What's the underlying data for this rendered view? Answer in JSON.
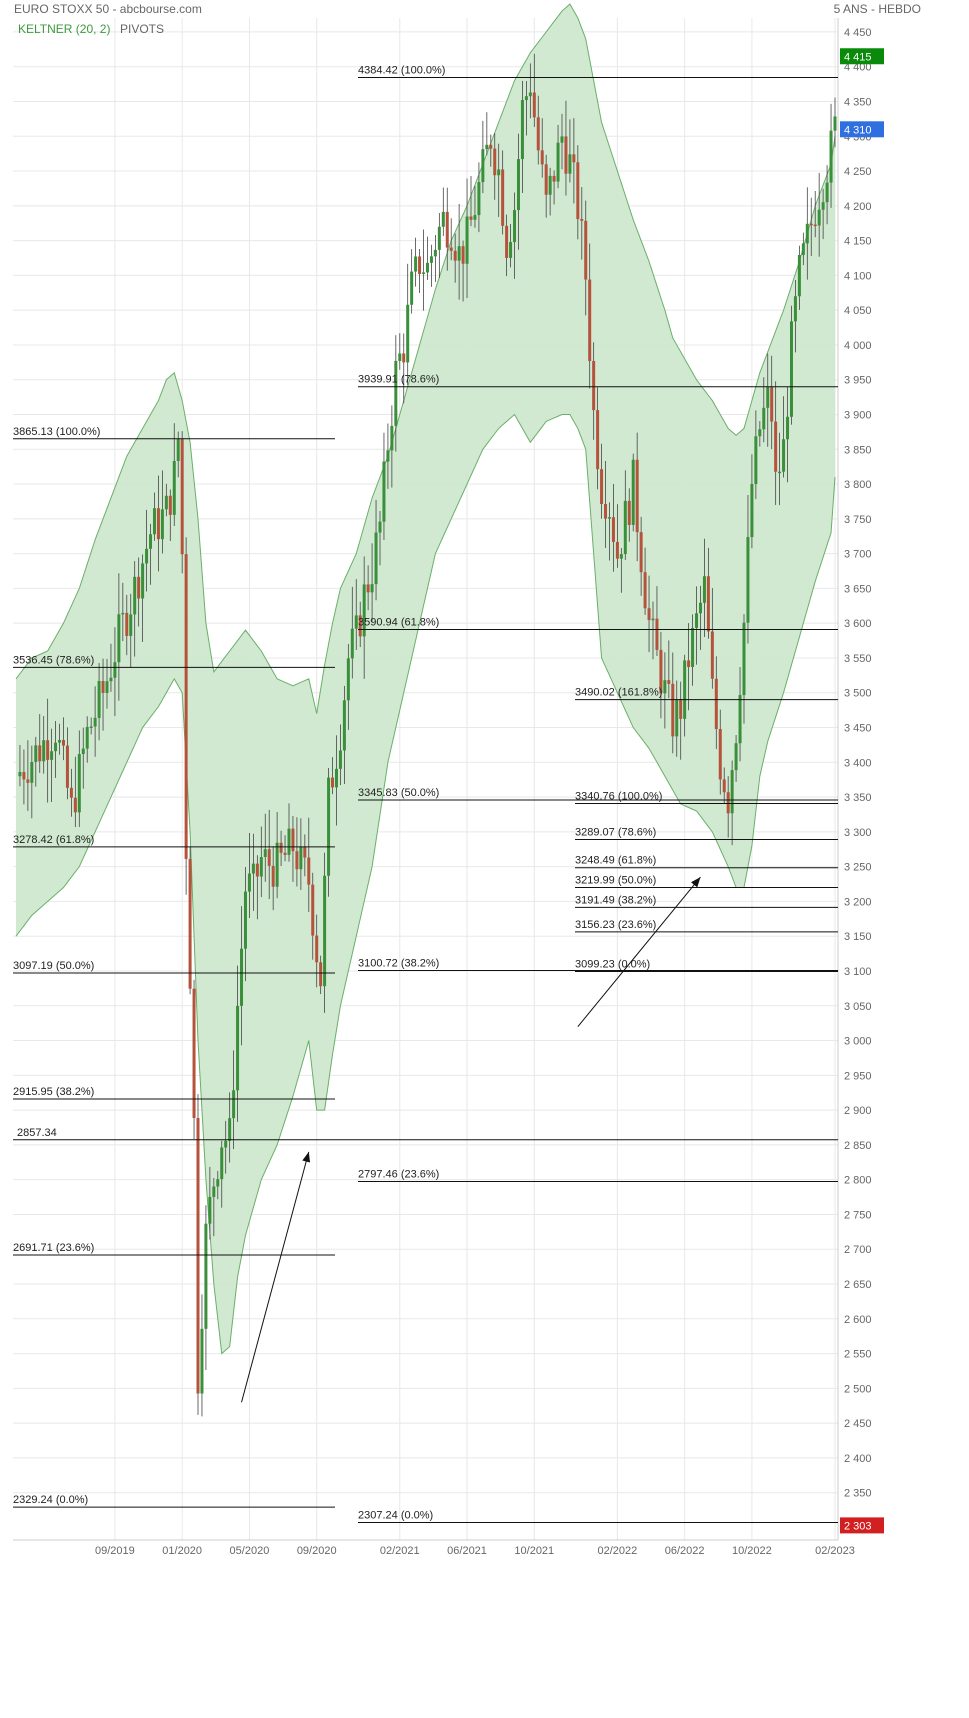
{
  "header": {
    "title": "EURO STOXX 50 - abcbourse.com",
    "period": "5 ANS - HEBDO",
    "indicator_keltner": "KELTNER (20, 2)",
    "indicator_pivots": "PIVOTS"
  },
  "colors": {
    "up": "#3a8f3a",
    "down": "#b5523b",
    "band_fill": "#cfe8cf",
    "band_line": "#6aaf6a",
    "grid": "#e8e8e8",
    "label_green": "#0a8a0a",
    "label_blue": "#2f6fe0",
    "label_red": "#d21f1f"
  },
  "chart_data": {
    "type": "candlestick",
    "title": "EURO STOXX 50 - abcbourse.com",
    "ylim": [
      2282,
      4470
    ],
    "y_ticks": [
      2350,
      2400,
      2450,
      2500,
      2550,
      2600,
      2650,
      2700,
      2750,
      2800,
      2850,
      2900,
      2950,
      3000,
      3050,
      3100,
      3150,
      3200,
      3250,
      3300,
      3350,
      3400,
      3450,
      3500,
      3550,
      3600,
      3650,
      3700,
      3750,
      3800,
      3850,
      3900,
      3950,
      4000,
      4050,
      4100,
      4150,
      4200,
      4250,
      4300,
      4350,
      4400,
      4450
    ],
    "y_tick_labels": [
      "2 350",
      "2 400",
      "2 450",
      "2 500",
      "2 550",
      "2 600",
      "2 650",
      "2 700",
      "2 750",
      "2 800",
      "2 850",
      "2 900",
      "2 950",
      "3 000",
      "3 050",
      "3 100",
      "3 150",
      "3 200",
      "3 250",
      "3 300",
      "3 350",
      "3 400",
      "3 450",
      "3 500",
      "3 550",
      "3 600",
      "3 650",
      "3 700",
      "3 750",
      "3 800",
      "3 850",
      "3 900",
      "3 950",
      "4 000",
      "4 050",
      "4 100",
      "4 150",
      "4 200",
      "4 250",
      "4 300",
      "4 350",
      "4 400",
      "4 450"
    ],
    "x_labels": [
      "09/2019",
      "01/2020",
      "05/2020",
      "09/2020",
      "02/2021",
      "06/2021",
      "10/2021",
      "02/2022",
      "06/2022",
      "10/2022",
      "02/2023"
    ],
    "x_label_weeks": [
      25,
      42,
      59,
      76,
      97,
      114,
      131,
      152,
      169,
      186,
      207
    ],
    "grid": true,
    "price_badges": [
      {
        "value": 4415,
        "label": "4 415",
        "color": "#0a8a0a"
      },
      {
        "value": 4310,
        "label": "4 310",
        "color": "#2f6fe0"
      },
      {
        "value": 2303,
        "label": "2 303",
        "color": "#d21f1f"
      }
    ],
    "fib_lines": [
      {
        "value": 3865.13,
        "label": "3865.13  (100.0%)",
        "group": 1
      },
      {
        "value": 3536.45,
        "label": "3536.45  (78.6%)",
        "group": 1
      },
      {
        "value": 3278.42,
        "label": "3278.42  (61.8%)",
        "group": 1
      },
      {
        "value": 3097.19,
        "label": "3097.19  (50.0%)",
        "group": 1
      },
      {
        "value": 2915.95,
        "label": "2915.95  (38.2%)",
        "group": 1
      },
      {
        "value": 2691.71,
        "label": "2691.71  (23.6%)",
        "group": 1
      },
      {
        "value": 2329.24,
        "label": "2329.24  (0.0%)",
        "group": 1
      },
      {
        "value": 2857.34,
        "label": "2857.34",
        "group": 0
      },
      {
        "value": 4384.42,
        "label": "4384.42  (100.0%)",
        "group": 2
      },
      {
        "value": 3939.91,
        "label": "3939.91  (78.6%)",
        "group": 2
      },
      {
        "value": 3590.94,
        "label": "3590.94  (61.8%)",
        "group": 2
      },
      {
        "value": 3345.83,
        "label": "3345.83  (50.0%)",
        "group": 2
      },
      {
        "value": 3100.72,
        "label": "3100.72  (38.2%)",
        "group": 2
      },
      {
        "value": 2797.46,
        "label": "2797.46  (23.6%)",
        "group": 2
      },
      {
        "value": 2307.24,
        "label": "2307.24  (0.0%)",
        "group": 2
      },
      {
        "value": 3490.02,
        "label": "3490.02  (161.8%)",
        "group": 3
      },
      {
        "value": 3340.76,
        "label": "3340.76  (100.0%)",
        "group": 3
      },
      {
        "value": 3289.07,
        "label": "3289.07  (78.6%)",
        "group": 3
      },
      {
        "value": 3248.49,
        "label": "3248.49  (61.8%)",
        "group": 3
      },
      {
        "value": 3219.99,
        "label": "3219.99  (50.0%)",
        "group": 3
      },
      {
        "value": 3191.49,
        "label": "3191.49  (38.2%)",
        "group": 3
      },
      {
        "value": 3156.23,
        "label": "3156.23  (23.6%)",
        "group": 3
      },
      {
        "value": 3099.23,
        "label": "3099.23  (0.0%)",
        "group": 3
      }
    ],
    "arrows": [
      {
        "from": [
          57,
          2480
        ],
        "to": [
          74,
          2840
        ]
      },
      {
        "from": [
          142,
          3020
        ],
        "to": [
          173,
          3235
        ]
      }
    ],
    "close_path": [
      [
        0,
        3380
      ],
      [
        6,
        3420
      ],
      [
        10,
        3450
      ],
      [
        14,
        3330
      ],
      [
        18,
        3440
      ],
      [
        22,
        3500
      ],
      [
        26,
        3580
      ],
      [
        30,
        3650
      ],
      [
        34,
        3730
      ],
      [
        38,
        3760
      ],
      [
        40,
        3810
      ],
      [
        41,
        3865
      ],
      [
        42,
        3700
      ],
      [
        43,
        3280
      ],
      [
        44,
        3100
      ],
      [
        45,
        2880
      ],
      [
        46,
        2520
      ],
      [
        47,
        2620
      ],
      [
        48,
        2720
      ],
      [
        50,
        2800
      ],
      [
        52,
        2860
      ],
      [
        54,
        2860
      ],
      [
        56,
        3050
      ],
      [
        58,
        3220
      ],
      [
        60,
        3220
      ],
      [
        62,
        3260
      ],
      [
        66,
        3250
      ],
      [
        70,
        3280
      ],
      [
        72,
        3250
      ],
      [
        74,
        3230
      ],
      [
        76,
        3130
      ],
      [
        77,
        3090
      ],
      [
        79,
        3350
      ],
      [
        82,
        3450
      ],
      [
        84,
        3550
      ],
      [
        86,
        3580
      ],
      [
        88,
        3640
      ],
      [
        90,
        3680
      ],
      [
        92,
        3740
      ],
      [
        94,
        3860
      ],
      [
        96,
        3960
      ],
      [
        98,
        4000
      ],
      [
        100,
        4080
      ],
      [
        102,
        4120
      ],
      [
        104,
        4110
      ],
      [
        106,
        4150
      ],
      [
        108,
        4180
      ],
      [
        110,
        4170
      ],
      [
        112,
        4130
      ],
      [
        114,
        4150
      ],
      [
        116,
        4200
      ],
      [
        118,
        4250
      ],
      [
        120,
        4300
      ],
      [
        122,
        4250
      ],
      [
        124,
        4150
      ],
      [
        126,
        4200
      ],
      [
        128,
        4340
      ],
      [
        130,
        4380
      ],
      [
        132,
        4280
      ],
      [
        134,
        4200
      ],
      [
        136,
        4250
      ],
      [
        138,
        4300
      ],
      [
        140,
        4260
      ],
      [
        142,
        4200
      ],
      [
        144,
        4100
      ],
      [
        146,
        3900
      ],
      [
        148,
        3800
      ],
      [
        150,
        3770
      ],
      [
        152,
        3700
      ],
      [
        154,
        3750
      ],
      [
        156,
        3800
      ],
      [
        158,
        3700
      ],
      [
        160,
        3600
      ],
      [
        162,
        3550
      ],
      [
        164,
        3500
      ],
      [
        166,
        3460
      ],
      [
        168,
        3480
      ],
      [
        170,
        3550
      ],
      [
        172,
        3600
      ],
      [
        174,
        3650
      ],
      [
        176,
        3500
      ],
      [
        178,
        3400
      ],
      [
        180,
        3350
      ],
      [
        182,
        3450
      ],
      [
        184,
        3600
      ],
      [
        186,
        3800
      ],
      [
        188,
        3880
      ],
      [
        190,
        3920
      ],
      [
        191,
        3900
      ],
      [
        192,
        3800
      ],
      [
        194,
        3850
      ],
      [
        196,
        4000
      ],
      [
        198,
        4100
      ],
      [
        200,
        4150
      ],
      [
        202,
        4200
      ],
      [
        204,
        4240
      ],
      [
        206,
        4280
      ],
      [
        207,
        4310
      ]
    ],
    "band_upper": [
      [
        0,
        3520
      ],
      [
        4,
        3550
      ],
      [
        8,
        3560
      ],
      [
        12,
        3600
      ],
      [
        16,
        3650
      ],
      [
        20,
        3720
      ],
      [
        24,
        3780
      ],
      [
        28,
        3840
      ],
      [
        32,
        3880
      ],
      [
        36,
        3920
      ],
      [
        38,
        3950
      ],
      [
        40,
        3960
      ],
      [
        42,
        3920
      ],
      [
        44,
        3860
      ],
      [
        46,
        3750
      ],
      [
        48,
        3600
      ],
      [
        50,
        3530
      ],
      [
        54,
        3560
      ],
      [
        58,
        3590
      ],
      [
        62,
        3560
      ],
      [
        66,
        3520
      ],
      [
        70,
        3510
      ],
      [
        74,
        3520
      ],
      [
        76,
        3470
      ],
      [
        78,
        3540
      ],
      [
        80,
        3600
      ],
      [
        82,
        3650
      ],
      [
        86,
        3700
      ],
      [
        90,
        3780
      ],
      [
        94,
        3840
      ],
      [
        98,
        3920
      ],
      [
        102,
        4000
      ],
      [
        106,
        4080
      ],
      [
        110,
        4150
      ],
      [
        114,
        4200
      ],
      [
        118,
        4260
      ],
      [
        122,
        4320
      ],
      [
        126,
        4380
      ],
      [
        130,
        4420
      ],
      [
        134,
        4450
      ],
      [
        138,
        4480
      ],
      [
        140,
        4490
      ],
      [
        142,
        4470
      ],
      [
        144,
        4440
      ],
      [
        146,
        4380
      ],
      [
        148,
        4320
      ],
      [
        152,
        4250
      ],
      [
        156,
        4180
      ],
      [
        160,
        4120
      ],
      [
        164,
        4050
      ],
      [
        166,
        4010
      ],
      [
        168,
        3990
      ],
      [
        172,
        3950
      ],
      [
        176,
        3920
      ],
      [
        180,
        3880
      ],
      [
        182,
        3870
      ],
      [
        184,
        3880
      ],
      [
        186,
        3920
      ],
      [
        188,
        3960
      ],
      [
        190,
        3990
      ],
      [
        194,
        4050
      ],
      [
        198,
        4120
      ],
      [
        202,
        4200
      ],
      [
        206,
        4260
      ],
      [
        207,
        4300
      ]
    ],
    "band_lower": [
      [
        0,
        3150
      ],
      [
        4,
        3180
      ],
      [
        8,
        3200
      ],
      [
        12,
        3220
      ],
      [
        16,
        3250
      ],
      [
        20,
        3300
      ],
      [
        24,
        3350
      ],
      [
        28,
        3400
      ],
      [
        32,
        3450
      ],
      [
        36,
        3480
      ],
      [
        38,
        3500
      ],
      [
        40,
        3520
      ],
      [
        42,
        3500
      ],
      [
        44,
        3300
      ],
      [
        46,
        3000
      ],
      [
        48,
        2800
      ],
      [
        50,
        2650
      ],
      [
        52,
        2550
      ],
      [
        54,
        2560
      ],
      [
        56,
        2660
      ],
      [
        58,
        2720
      ],
      [
        62,
        2800
      ],
      [
        66,
        2850
      ],
      [
        70,
        2920
      ],
      [
        74,
        3000
      ],
      [
        76,
        2900
      ],
      [
        78,
        2900
      ],
      [
        80,
        2980
      ],
      [
        82,
        3050
      ],
      [
        86,
        3150
      ],
      [
        90,
        3250
      ],
      [
        94,
        3400
      ],
      [
        98,
        3500
      ],
      [
        102,
        3600
      ],
      [
        106,
        3700
      ],
      [
        110,
        3750
      ],
      [
        114,
        3800
      ],
      [
        118,
        3850
      ],
      [
        122,
        3880
      ],
      [
        126,
        3900
      ],
      [
        130,
        3860
      ],
      [
        134,
        3890
      ],
      [
        138,
        3900
      ],
      [
        140,
        3900
      ],
      [
        142,
        3880
      ],
      [
        144,
        3850
      ],
      [
        146,
        3700
      ],
      [
        148,
        3550
      ],
      [
        152,
        3500
      ],
      [
        156,
        3450
      ],
      [
        160,
        3420
      ],
      [
        164,
        3380
      ],
      [
        168,
        3340
      ],
      [
        172,
        3330
      ],
      [
        176,
        3300
      ],
      [
        180,
        3250
      ],
      [
        182,
        3220
      ],
      [
        184,
        3220
      ],
      [
        186,
        3280
      ],
      [
        188,
        3380
      ],
      [
        190,
        3430
      ],
      [
        194,
        3500
      ],
      [
        198,
        3580
      ],
      [
        202,
        3660
      ],
      [
        206,
        3730
      ],
      [
        207,
        3810
      ]
    ]
  }
}
